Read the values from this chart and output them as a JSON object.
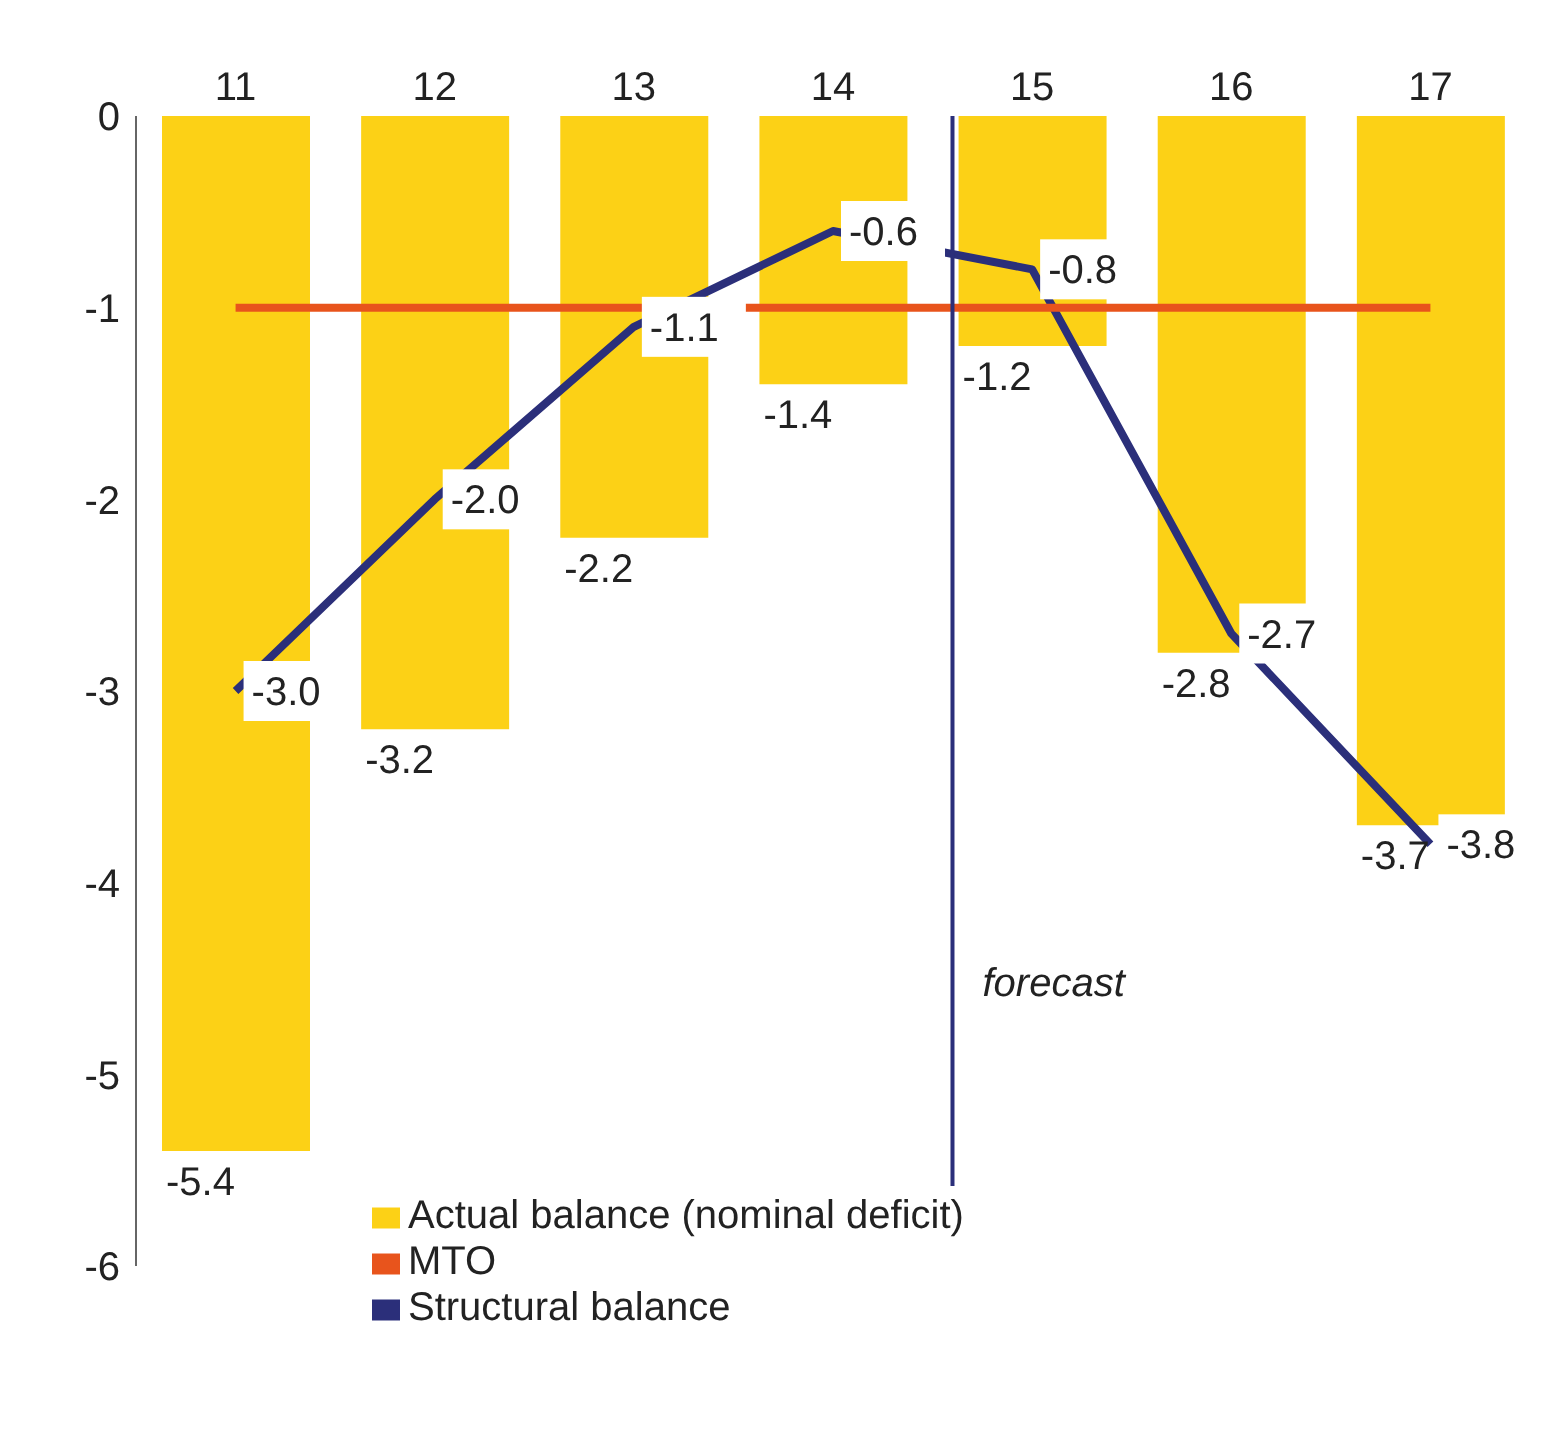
{
  "chart_data": {
    "type": "bar",
    "x": [
      11,
      12,
      13,
      14,
      15,
      16,
      17
    ],
    "xlim": [
      10.5,
      17.5
    ],
    "xticks": [
      11,
      12,
      13,
      14,
      15,
      16,
      17
    ],
    "ylim": [
      -6,
      0
    ],
    "yticks": [
      -6,
      -5,
      -4,
      -3,
      -2,
      -1,
      0
    ],
    "grid": false,
    "legend": "bottom",
    "marker": "none",
    "line_style": "solid",
    "series": [
      {
        "name": "Actual balance (nominal deficit)",
        "color": "#fcd116",
        "values": [
          -5.4,
          -3.2,
          -2.2,
          -1.4,
          -1.2,
          -2.8,
          -3.7
        ],
        "value_labels": [
          "-5.4",
          "-3.2",
          "-2.2",
          "-1.4",
          "-1.2",
          "-2.8",
          "-3.7"
        ]
      },
      {
        "name": "Structural balance",
        "type": "line",
        "color": "#2b2f7a",
        "values": [
          -3.0,
          -2.0,
          -1.1,
          -0.6,
          -0.8,
          -2.7,
          -3.8
        ],
        "value_labels": [
          "-3.0",
          "-2.0",
          "-1.1",
          "-0.6",
          "-0.8",
          "-2.7",
          "-3.8"
        ]
      },
      {
        "name": "MTO",
        "type": "line",
        "color": "#e8541c",
        "values": [
          -1,
          -1,
          -1,
          -1,
          -1,
          -1,
          -1
        ]
      }
    ],
    "ref_lines": [
      {
        "axis": "x",
        "value": 14.6,
        "label": "forecast",
        "color": "#2b2f7a"
      }
    ]
  }
}
